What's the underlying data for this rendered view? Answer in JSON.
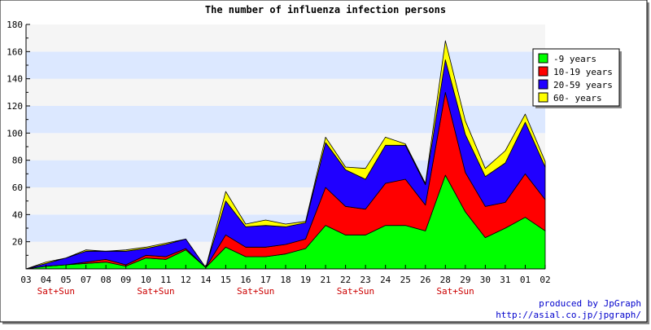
{
  "chart_data": {
    "type": "area",
    "stacked": true,
    "title": "The number of influenza infection persons",
    "xlabel": "",
    "ylabel": "",
    "ylim": [
      0,
      180
    ],
    "yticks": [
      20,
      40,
      60,
      80,
      100,
      120,
      140,
      160,
      180
    ],
    "categories": [
      "03",
      "04",
      "05",
      "07",
      "08",
      "09",
      "10",
      "11",
      "12",
      "14",
      "15",
      "16",
      "17",
      "18",
      "19",
      "21",
      "22",
      "23",
      "24",
      "25",
      "26",
      "28",
      "29",
      "30",
      "31",
      "01",
      "02"
    ],
    "weekend_markers": [
      {
        "after_index": 1,
        "label": "Sat+Sun"
      },
      {
        "after_index": 6,
        "label": "Sat+Sun"
      },
      {
        "after_index": 11,
        "label": "Sat+Sun"
      },
      {
        "after_index": 16,
        "label": "Sat+Sun"
      },
      {
        "after_index": 21,
        "label": "Sat+Sun"
      }
    ],
    "series": [
      {
        "name": "-9 years",
        "color": "#00ff00",
        "values": [
          0,
          2,
          3,
          4,
          5,
          2,
          8,
          7,
          14,
          1,
          16,
          9,
          9,
          11,
          15,
          32,
          25,
          25,
          32,
          32,
          28,
          69,
          42,
          23,
          30,
          38,
          28
        ]
      },
      {
        "name": "10-19 years",
        "color": "#ff0000",
        "values": [
          0,
          0,
          0,
          1,
          2,
          1,
          2,
          2,
          1,
          0,
          9,
          7,
          7,
          7,
          7,
          28,
          21,
          19,
          31,
          34,
          19,
          61,
          29,
          23,
          19,
          32,
          23
        ]
      },
      {
        "name": "20-59 years",
        "color": "#2000ff",
        "values": [
          0,
          2,
          5,
          8,
          6,
          10,
          5,
          9,
          7,
          0,
          25,
          15,
          16,
          13,
          12,
          33,
          27,
          22,
          28,
          25,
          15,
          24,
          28,
          22,
          29,
          38,
          24
        ]
      },
      {
        "name": "60- years",
        "color": "#ffff00",
        "values": [
          0,
          1,
          0,
          1,
          0,
          1,
          1,
          1,
          0,
          0,
          7,
          2,
          4,
          2,
          1,
          4,
          2,
          8,
          6,
          1,
          1,
          14,
          10,
          6,
          9,
          6,
          4
        ]
      }
    ],
    "grid": {
      "horizontal_bands": true,
      "band_colors": [
        "#f5f5f5",
        "#dce8ff"
      ]
    },
    "legend": {
      "position": "top-right"
    }
  },
  "credit": {
    "line1": "produced by JpGraph",
    "line2": "http://asial.co.jp/jpgraph/"
  }
}
